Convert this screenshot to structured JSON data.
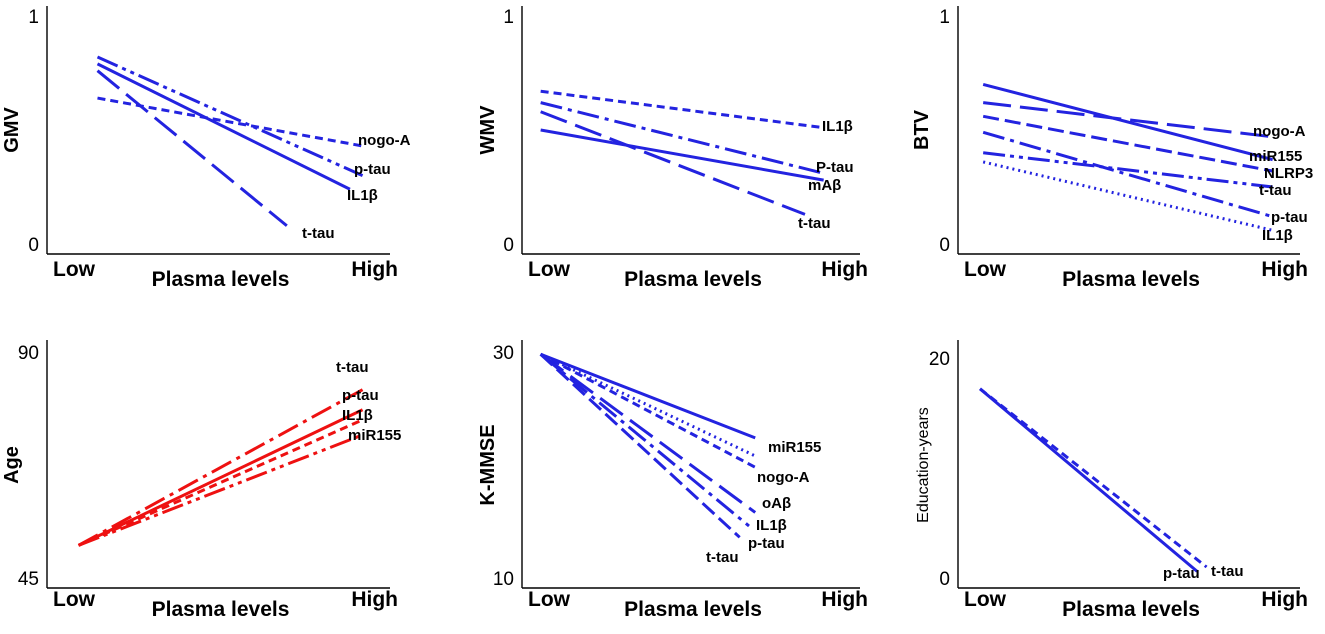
{
  "chart_data": [
    {
      "type": "line",
      "panel": "GMV",
      "ylabel": "GMV",
      "xlabel": "Plasma levels",
      "x_tick_low": "Low",
      "x_tick_high": "High",
      "y_tick_top": "1",
      "y_tick_bottom": "0",
      "ylim": [
        0,
        1
      ],
      "xlim": [
        0,
        1
      ],
      "color": "#2323e0",
      "series": [
        {
          "name": "nogo-A",
          "dash": "short",
          "x": [
            0.16,
            1.0
          ],
          "y": [
            0.64,
            0.43
          ]
        },
        {
          "name": "p-tau",
          "dash": "dashdotdot",
          "x": [
            0.16,
            1.0
          ],
          "y": [
            0.82,
            0.3
          ]
        },
        {
          "name": "IL1β",
          "dash": "solid",
          "x": [
            0.16,
            0.96
          ],
          "y": [
            0.79,
            0.24
          ]
        },
        {
          "name": "t-tau",
          "dash": "long",
          "x": [
            0.16,
            0.76
          ],
          "y": [
            0.76,
            0.08
          ]
        }
      ]
    },
    {
      "type": "line",
      "panel": "WMV",
      "ylabel": "WMV",
      "xlabel": "Plasma levels",
      "x_tick_low": "Low",
      "x_tick_high": "High",
      "y_tick_top": "1",
      "y_tick_bottom": "0",
      "ylim": [
        0,
        1
      ],
      "xlim": [
        0,
        1
      ],
      "color": "#2323e0",
      "series": [
        {
          "name": "IL1β",
          "dash": "short",
          "x": [
            0.06,
            0.97
          ],
          "y": [
            0.67,
            0.51
          ]
        },
        {
          "name": "P-tau",
          "dash": "dashdot",
          "x": [
            0.06,
            0.97
          ],
          "y": [
            0.62,
            0.31
          ]
        },
        {
          "name": "mAβ",
          "dash": "solid",
          "x": [
            0.06,
            0.97
          ],
          "y": [
            0.5,
            0.28
          ]
        },
        {
          "name": "t-tau",
          "dash": "long",
          "x": [
            0.06,
            0.91
          ],
          "y": [
            0.58,
            0.13
          ]
        }
      ]
    },
    {
      "type": "line",
      "panel": "BTV",
      "ylabel": "BTV",
      "xlabel": "Plasma levels",
      "x_tick_low": "Low",
      "x_tick_high": "High",
      "y_tick_top": "1",
      "y_tick_bottom": "0",
      "ylim": [
        0,
        1
      ],
      "xlim": [
        0,
        1
      ],
      "color": "#2323e0",
      "series": [
        {
          "name": "nogo-A",
          "dash": "long",
          "x": [
            0.08,
            1.0
          ],
          "y": [
            0.62,
            0.47
          ]
        },
        {
          "name": "miR155",
          "dash": "solid",
          "x": [
            0.08,
            1.0
          ],
          "y": [
            0.7,
            0.37
          ]
        },
        {
          "name": "NLRP3",
          "dash": "medium",
          "x": [
            0.08,
            1.0
          ],
          "y": [
            0.56,
            0.32
          ]
        },
        {
          "name": "t-tau",
          "dash": "dashdotdot",
          "x": [
            0.08,
            1.0
          ],
          "y": [
            0.4,
            0.25
          ]
        },
        {
          "name": "p-tau",
          "dash": "dashdot",
          "x": [
            0.08,
            1.0
          ],
          "y": [
            0.49,
            0.12
          ]
        },
        {
          "name": "IL1β",
          "dash": "dotted",
          "x": [
            0.08,
            1.0
          ],
          "y": [
            0.36,
            0.06
          ]
        }
      ]
    },
    {
      "type": "line",
      "panel": "Age",
      "ylabel": "Age",
      "xlabel": "Plasma levels",
      "x_tick_low": "Low",
      "x_tick_high": "High",
      "y_tick_top": "90",
      "y_tick_bottom": "45",
      "ylim": [
        45,
        90
      ],
      "xlim": [
        0,
        1
      ],
      "color": "#ee1111",
      "series": [
        {
          "name": "t-tau",
          "dash": "dashdot",
          "x": [
            0.1,
            1.0
          ],
          "y": [
            51.5,
            82.5
          ]
        },
        {
          "name": "p-tau",
          "dash": "solid",
          "x": [
            0.1,
            1.0
          ],
          "y": [
            51.5,
            78.5
          ]
        },
        {
          "name": "IL1β",
          "dash": "short",
          "x": [
            0.1,
            1.0
          ],
          "y": [
            51.5,
            76.5
          ]
        },
        {
          "name": "miR155",
          "dash": "dashdotdot",
          "x": [
            0.1,
            1.0
          ],
          "y": [
            51.5,
            73.5
          ]
        }
      ]
    },
    {
      "type": "line",
      "panel": "K-MMSE",
      "ylabel": "K-MMSE",
      "xlabel": "Plasma levels",
      "x_tick_low": "Low",
      "x_tick_high": "High",
      "y_tick_top": "30",
      "y_tick_bottom": "10",
      "ylim": [
        10,
        30
      ],
      "xlim": [
        0,
        1
      ],
      "color": "#2323e0",
      "series": [
        {
          "name": "miR155",
          "dash": "solid",
          "x": [
            0.06,
            0.75
          ],
          "y": [
            29.8,
            22.4
          ]
        },
        {
          "name": "nogo-A",
          "dash": "dotted",
          "x": [
            0.06,
            0.75
          ],
          "y": [
            29.8,
            20.8
          ]
        },
        {
          "name": "oAβ",
          "dash": "short",
          "x": [
            0.06,
            0.75
          ],
          "y": [
            29.8,
            19.8
          ]
        },
        {
          "name": "IL1β",
          "dash": "long",
          "x": [
            0.06,
            0.75
          ],
          "y": [
            29.8,
            15.8
          ]
        },
        {
          "name": "p-tau",
          "dash": "dashdot",
          "x": [
            0.06,
            0.73
          ],
          "y": [
            29.8,
            14.6
          ]
        },
        {
          "name": "t-tau",
          "dash": "medium",
          "x": [
            0.06,
            0.7
          ],
          "y": [
            29.8,
            13.6
          ]
        }
      ]
    },
    {
      "type": "line",
      "panel": "Education-years",
      "ylabel": "Education-years",
      "xlabel": "Plasma levels",
      "x_tick_low": "Low",
      "x_tick_high": "High",
      "y_tick_top": "20",
      "y_tick_bottom": "0",
      "ylim": [
        0,
        20
      ],
      "xlim": [
        0,
        1
      ],
      "color": "#2323e0",
      "series": [
        {
          "name": "p-tau",
          "dash": "solid",
          "x": [
            0.07,
            0.76
          ],
          "y": [
            17.2,
            0.6
          ]
        },
        {
          "name": "t-tau",
          "dash": "short",
          "x": [
            0.07,
            0.79
          ],
          "y": [
            17.2,
            1.0
          ]
        }
      ]
    }
  ]
}
